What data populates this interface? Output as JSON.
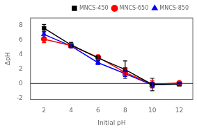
{
  "chart_data": {
    "type": "line",
    "x_label": "Initial pH",
    "y_label": "ΔpH",
    "x": [
      2,
      4,
      6,
      8,
      10,
      12
    ],
    "series": [
      {
        "name": "MNCS-450",
        "color": "black",
        "marker": "square",
        "values": [
          7.6,
          5.3,
          3.5,
          1.9,
          -0.15,
          -0.1
        ],
        "yerr": [
          0.5,
          0.35,
          0.3,
          1.2,
          0.85,
          0.25
        ]
      },
      {
        "name": "MNCS-650",
        "color": "red",
        "marker": "circle",
        "values": [
          6.1,
          5.2,
          3.6,
          1.5,
          -0.1,
          0.05
        ],
        "yerr": [
          0.5,
          0.3,
          0.3,
          0.5,
          0.5,
          0.2
        ]
      },
      {
        "name": "MNCS-850",
        "color": "blue",
        "marker": "triangle",
        "values": [
          6.75,
          5.15,
          2.85,
          1.35,
          -0.2,
          -0.05
        ],
        "yerr": [
          0.35,
          0.25,
          0.25,
          0.4,
          0.4,
          0.2
        ]
      }
    ],
    "xlim": [
      1,
      13
    ],
    "xticks": [
      2,
      4,
      6,
      8,
      10,
      12
    ],
    "ylim": [
      -2.2,
      9
    ],
    "yticks": [
      -2,
      0,
      2,
      4,
      6,
      8
    ],
    "hline": 0,
    "grid": false,
    "legend": "upper right"
  }
}
